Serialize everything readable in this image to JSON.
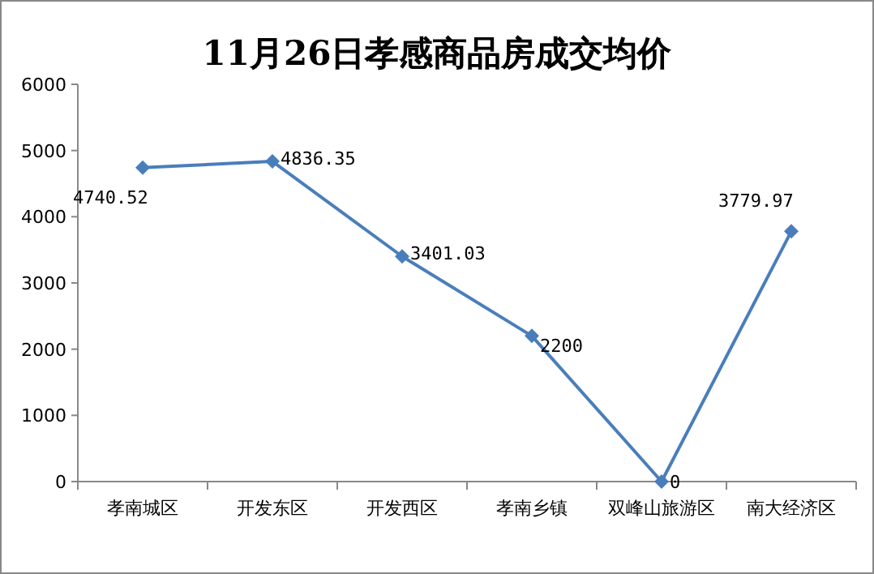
{
  "chart_data": {
    "type": "line",
    "title": "11月26日孝感商品房成交均价",
    "categories": [
      "孝南城区",
      "开发东区",
      "开发西区",
      "孝南乡镇",
      "双峰山旅游区",
      "南大经济区"
    ],
    "values": [
      4740.52,
      4836.35,
      3401.03,
      2200,
      0,
      3779.97
    ],
    "color": "#4a7ebb",
    "marker": "diamond",
    "data_labels": true,
    "ylim": [
      0,
      6000
    ],
    "yticks": [
      0,
      1000,
      2000,
      3000,
      4000,
      5000,
      6000
    ]
  }
}
